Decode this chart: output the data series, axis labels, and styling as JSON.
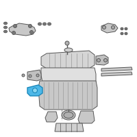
{
  "bg_color": "#ffffff",
  "line_color": "#555555",
  "highlight_color": "#4db8e8",
  "figsize": [
    2.0,
    2.0
  ],
  "dpi": 100
}
